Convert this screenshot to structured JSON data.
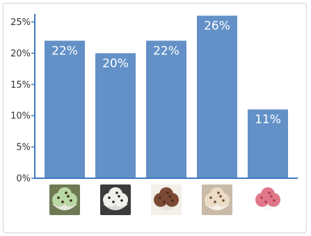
{
  "chart_data": {
    "type": "bar",
    "categories": [
      "mint chocolate chip",
      "cookies and cream",
      "chocolate",
      "cookie dough",
      "strawberry"
    ],
    "values": [
      22,
      20,
      22,
      26,
      11
    ],
    "data_labels": [
      "22%",
      "20%",
      "22%",
      "26%",
      "11%"
    ],
    "yticks": [
      "0%",
      "5%",
      "10%",
      "15%",
      "20%",
      "25%"
    ],
    "ylim": [
      0,
      26
    ],
    "bar_color": "#6391c7",
    "axis_color": "#3f78c0",
    "grid": false,
    "legend": "none",
    "category_icons": [
      "mint-chip-ice-cream-icon",
      "cookies-and-cream-ice-cream-icon",
      "chocolate-ice-cream-icon",
      "cookie-dough-ice-cream-icon",
      "strawberry-ice-cream-icon"
    ]
  }
}
